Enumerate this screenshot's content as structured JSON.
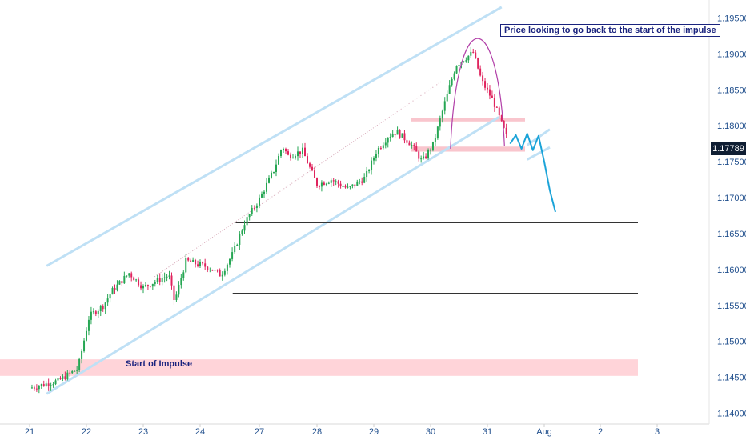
{
  "chart_data": {
    "type": "candlestick",
    "x_tick_labels": [
      "21",
      "22",
      "23",
      "24",
      "27",
      "28",
      "29",
      "30",
      "31",
      "Aug",
      "2",
      "3"
    ],
    "y_tick_labels": [
      "1.19500",
      "1.19000",
      "1.18500",
      "1.18000",
      "1.17500",
      "1.17000",
      "1.16500",
      "1.16000",
      "1.15500",
      "1.15000",
      "1.14500",
      "1.14000"
    ],
    "ylim": [
      1.1385,
      1.1975
    ],
    "current_price": "1.17789",
    "annotations": {
      "note": "Price looking to go back to the start of the impulse",
      "zone_label": "Start of Impulse"
    },
    "levels": [
      1.1665,
      1.1567
    ],
    "zones": {
      "start_of_impulse": [
        1.1452,
        1.1475
      ],
      "resistance_zone": [
        1.1806,
        1.1811
      ],
      "support_zone": [
        1.1764,
        1.1771
      ]
    },
    "anchors": [
      {
        "t": 0.0,
        "p": 1.1435
      },
      {
        "t": 0.5,
        "p": 1.1445
      },
      {
        "t": 0.85,
        "p": 1.1462
      },
      {
        "t": 1.05,
        "p": 1.1535
      },
      {
        "t": 1.3,
        "p": 1.155
      },
      {
        "t": 1.45,
        "p": 1.157
      },
      {
        "t": 1.75,
        "p": 1.1595
      },
      {
        "t": 2.0,
        "p": 1.1575
      },
      {
        "t": 2.25,
        "p": 1.1585
      },
      {
        "t": 2.45,
        "p": 1.1592
      },
      {
        "t": 2.55,
        "p": 1.1555
      },
      {
        "t": 2.75,
        "p": 1.1612
      },
      {
        "t": 3.15,
        "p": 1.1603
      },
      {
        "t": 3.35,
        "p": 1.1592
      },
      {
        "t": 3.55,
        "p": 1.1622
      },
      {
        "t": 3.75,
        "p": 1.1665
      },
      {
        "t": 4.0,
        "p": 1.1698
      },
      {
        "t": 4.25,
        "p": 1.1738
      },
      {
        "t": 4.4,
        "p": 1.1772
      },
      {
        "t": 4.5,
        "p": 1.1758
      },
      {
        "t": 4.75,
        "p": 1.1765
      },
      {
        "t": 5.0,
        "p": 1.1718
      },
      {
        "t": 5.25,
        "p": 1.1725
      },
      {
        "t": 5.55,
        "p": 1.1712
      },
      {
        "t": 5.85,
        "p": 1.1728
      },
      {
        "t": 6.05,
        "p": 1.1765
      },
      {
        "t": 6.25,
        "p": 1.1785
      },
      {
        "t": 6.4,
        "p": 1.1792
      },
      {
        "t": 6.65,
        "p": 1.1775
      },
      {
        "t": 6.85,
        "p": 1.175
      },
      {
        "t": 7.05,
        "p": 1.1775
      },
      {
        "t": 7.25,
        "p": 1.1832
      },
      {
        "t": 7.45,
        "p": 1.1885
      },
      {
        "t": 7.75,
        "p": 1.1902
      },
      {
        "t": 7.9,
        "p": 1.1862
      },
      {
        "t": 8.1,
        "p": 1.1835
      },
      {
        "t": 8.35,
        "p": 1.1782
      }
    ],
    "projection": [
      {
        "t": 8.4,
        "p": 1.1775
      },
      {
        "t": 8.5,
        "p": 1.1787
      },
      {
        "t": 8.6,
        "p": 1.1768
      },
      {
        "t": 8.7,
        "p": 1.1789
      },
      {
        "t": 8.8,
        "p": 1.1766
      },
      {
        "t": 8.9,
        "p": 1.1786
      },
      {
        "t": 9.0,
        "p": 1.175
      },
      {
        "t": 9.1,
        "p": 1.171
      },
      {
        "t": 9.2,
        "p": 1.168
      }
    ]
  }
}
